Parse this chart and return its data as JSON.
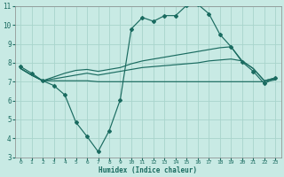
{
  "xlabel": "Humidex (Indice chaleur)",
  "xlim": [
    -0.5,
    23.5
  ],
  "ylim": [
    3,
    11
  ],
  "xticks": [
    0,
    1,
    2,
    3,
    4,
    5,
    6,
    7,
    8,
    9,
    10,
    11,
    12,
    13,
    14,
    15,
    16,
    17,
    18,
    19,
    20,
    21,
    22,
    23
  ],
  "yticks": [
    3,
    4,
    5,
    6,
    7,
    8,
    9,
    10,
    11
  ],
  "bg_color": "#c8eae4",
  "grid_color": "#a8d4cc",
  "line_color": "#1a6b60",
  "line1_x": [
    0,
    1,
    2,
    3,
    4,
    5,
    6,
    7,
    8,
    9,
    10,
    11,
    12,
    13,
    14,
    15,
    16,
    17,
    18,
    19,
    20,
    21,
    22,
    23
  ],
  "line1_y": [
    7.8,
    7.45,
    7.05,
    6.8,
    6.3,
    4.85,
    4.1,
    3.3,
    4.4,
    6.05,
    9.8,
    10.4,
    10.2,
    10.5,
    10.5,
    11.05,
    11.1,
    10.6,
    9.5,
    8.85,
    8.05,
    7.55,
    6.9,
    7.2
  ],
  "line2_x": [
    0,
    1,
    2,
    3,
    4,
    5,
    6,
    7,
    8,
    9,
    10,
    11,
    12,
    13,
    14,
    15,
    16,
    17,
    18,
    19,
    20,
    21,
    22,
    23
  ],
  "line2_y": [
    7.7,
    7.35,
    7.05,
    7.05,
    7.05,
    7.05,
    7.05,
    7.0,
    7.0,
    7.0,
    7.0,
    7.0,
    7.0,
    7.0,
    7.0,
    7.0,
    7.0,
    7.0,
    7.0,
    7.0,
    7.0,
    7.0,
    7.0,
    7.1
  ],
  "line3_x": [
    0,
    1,
    2,
    3,
    4,
    5,
    6,
    7,
    8,
    9,
    10,
    11,
    12,
    13,
    14,
    15,
    16,
    17,
    18,
    19,
    20,
    21,
    22,
    23
  ],
  "line3_y": [
    7.7,
    7.35,
    7.05,
    7.15,
    7.25,
    7.35,
    7.45,
    7.35,
    7.45,
    7.55,
    7.65,
    7.75,
    7.8,
    7.85,
    7.9,
    7.95,
    8.0,
    8.1,
    8.15,
    8.2,
    8.1,
    7.7,
    7.05,
    7.2
  ],
  "line4_x": [
    0,
    1,
    2,
    3,
    4,
    5,
    6,
    7,
    8,
    9,
    10,
    11,
    12,
    13,
    14,
    15,
    16,
    17,
    18,
    19,
    20,
    21,
    22,
    23
  ],
  "line4_y": [
    7.7,
    7.35,
    7.05,
    7.25,
    7.45,
    7.6,
    7.65,
    7.55,
    7.65,
    7.75,
    7.95,
    8.1,
    8.2,
    8.3,
    8.4,
    8.5,
    8.6,
    8.7,
    8.8,
    8.85,
    8.1,
    7.7,
    7.05,
    7.2
  ]
}
